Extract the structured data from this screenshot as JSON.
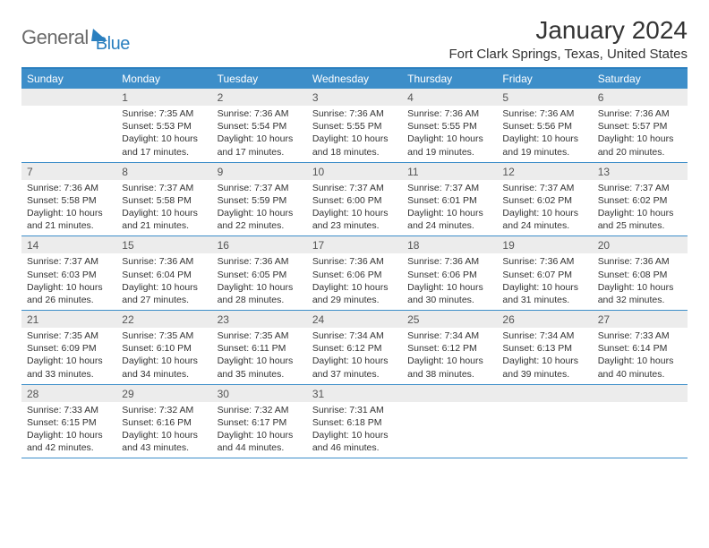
{
  "brand": {
    "part1": "General",
    "part2": "Blue"
  },
  "title": "January 2024",
  "location": "Fort Clark Springs, Texas, United States",
  "colors": {
    "header_bg": "#3d8ec9",
    "accent": "#2a7fbf",
    "row_border": "#3d8ec9",
    "daynum_bg": "#ececec",
    "text": "#333333",
    "logo_gray": "#6a6a6a",
    "page_bg": "#ffffff"
  },
  "typography": {
    "month_title_size": 28,
    "location_size": 15,
    "dayhead_size": 12,
    "daynum_size": 12,
    "body_size": 10.5
  },
  "day_names": [
    "Sunday",
    "Monday",
    "Tuesday",
    "Wednesday",
    "Thursday",
    "Friday",
    "Saturday"
  ],
  "weeks": [
    [
      {
        "empty": true
      },
      {
        "n": "1",
        "sr": "Sunrise: 7:35 AM",
        "ss": "Sunset: 5:53 PM",
        "dl1": "Daylight: 10 hours",
        "dl2": "and 17 minutes."
      },
      {
        "n": "2",
        "sr": "Sunrise: 7:36 AM",
        "ss": "Sunset: 5:54 PM",
        "dl1": "Daylight: 10 hours",
        "dl2": "and 17 minutes."
      },
      {
        "n": "3",
        "sr": "Sunrise: 7:36 AM",
        "ss": "Sunset: 5:55 PM",
        "dl1": "Daylight: 10 hours",
        "dl2": "and 18 minutes."
      },
      {
        "n": "4",
        "sr": "Sunrise: 7:36 AM",
        "ss": "Sunset: 5:55 PM",
        "dl1": "Daylight: 10 hours",
        "dl2": "and 19 minutes."
      },
      {
        "n": "5",
        "sr": "Sunrise: 7:36 AM",
        "ss": "Sunset: 5:56 PM",
        "dl1": "Daylight: 10 hours",
        "dl2": "and 19 minutes."
      },
      {
        "n": "6",
        "sr": "Sunrise: 7:36 AM",
        "ss": "Sunset: 5:57 PM",
        "dl1": "Daylight: 10 hours",
        "dl2": "and 20 minutes."
      }
    ],
    [
      {
        "n": "7",
        "sr": "Sunrise: 7:36 AM",
        "ss": "Sunset: 5:58 PM",
        "dl1": "Daylight: 10 hours",
        "dl2": "and 21 minutes."
      },
      {
        "n": "8",
        "sr": "Sunrise: 7:37 AM",
        "ss": "Sunset: 5:58 PM",
        "dl1": "Daylight: 10 hours",
        "dl2": "and 21 minutes."
      },
      {
        "n": "9",
        "sr": "Sunrise: 7:37 AM",
        "ss": "Sunset: 5:59 PM",
        "dl1": "Daylight: 10 hours",
        "dl2": "and 22 minutes."
      },
      {
        "n": "10",
        "sr": "Sunrise: 7:37 AM",
        "ss": "Sunset: 6:00 PM",
        "dl1": "Daylight: 10 hours",
        "dl2": "and 23 minutes."
      },
      {
        "n": "11",
        "sr": "Sunrise: 7:37 AM",
        "ss": "Sunset: 6:01 PM",
        "dl1": "Daylight: 10 hours",
        "dl2": "and 24 minutes."
      },
      {
        "n": "12",
        "sr": "Sunrise: 7:37 AM",
        "ss": "Sunset: 6:02 PM",
        "dl1": "Daylight: 10 hours",
        "dl2": "and 24 minutes."
      },
      {
        "n": "13",
        "sr": "Sunrise: 7:37 AM",
        "ss": "Sunset: 6:02 PM",
        "dl1": "Daylight: 10 hours",
        "dl2": "and 25 minutes."
      }
    ],
    [
      {
        "n": "14",
        "sr": "Sunrise: 7:37 AM",
        "ss": "Sunset: 6:03 PM",
        "dl1": "Daylight: 10 hours",
        "dl2": "and 26 minutes."
      },
      {
        "n": "15",
        "sr": "Sunrise: 7:36 AM",
        "ss": "Sunset: 6:04 PM",
        "dl1": "Daylight: 10 hours",
        "dl2": "and 27 minutes."
      },
      {
        "n": "16",
        "sr": "Sunrise: 7:36 AM",
        "ss": "Sunset: 6:05 PM",
        "dl1": "Daylight: 10 hours",
        "dl2": "and 28 minutes."
      },
      {
        "n": "17",
        "sr": "Sunrise: 7:36 AM",
        "ss": "Sunset: 6:06 PM",
        "dl1": "Daylight: 10 hours",
        "dl2": "and 29 minutes."
      },
      {
        "n": "18",
        "sr": "Sunrise: 7:36 AM",
        "ss": "Sunset: 6:06 PM",
        "dl1": "Daylight: 10 hours",
        "dl2": "and 30 minutes."
      },
      {
        "n": "19",
        "sr": "Sunrise: 7:36 AM",
        "ss": "Sunset: 6:07 PM",
        "dl1": "Daylight: 10 hours",
        "dl2": "and 31 minutes."
      },
      {
        "n": "20",
        "sr": "Sunrise: 7:36 AM",
        "ss": "Sunset: 6:08 PM",
        "dl1": "Daylight: 10 hours",
        "dl2": "and 32 minutes."
      }
    ],
    [
      {
        "n": "21",
        "sr": "Sunrise: 7:35 AM",
        "ss": "Sunset: 6:09 PM",
        "dl1": "Daylight: 10 hours",
        "dl2": "and 33 minutes."
      },
      {
        "n": "22",
        "sr": "Sunrise: 7:35 AM",
        "ss": "Sunset: 6:10 PM",
        "dl1": "Daylight: 10 hours",
        "dl2": "and 34 minutes."
      },
      {
        "n": "23",
        "sr": "Sunrise: 7:35 AM",
        "ss": "Sunset: 6:11 PM",
        "dl1": "Daylight: 10 hours",
        "dl2": "and 35 minutes."
      },
      {
        "n": "24",
        "sr": "Sunrise: 7:34 AM",
        "ss": "Sunset: 6:12 PM",
        "dl1": "Daylight: 10 hours",
        "dl2": "and 37 minutes."
      },
      {
        "n": "25",
        "sr": "Sunrise: 7:34 AM",
        "ss": "Sunset: 6:12 PM",
        "dl1": "Daylight: 10 hours",
        "dl2": "and 38 minutes."
      },
      {
        "n": "26",
        "sr": "Sunrise: 7:34 AM",
        "ss": "Sunset: 6:13 PM",
        "dl1": "Daylight: 10 hours",
        "dl2": "and 39 minutes."
      },
      {
        "n": "27",
        "sr": "Sunrise: 7:33 AM",
        "ss": "Sunset: 6:14 PM",
        "dl1": "Daylight: 10 hours",
        "dl2": "and 40 minutes."
      }
    ],
    [
      {
        "n": "28",
        "sr": "Sunrise: 7:33 AM",
        "ss": "Sunset: 6:15 PM",
        "dl1": "Daylight: 10 hours",
        "dl2": "and 42 minutes."
      },
      {
        "n": "29",
        "sr": "Sunrise: 7:32 AM",
        "ss": "Sunset: 6:16 PM",
        "dl1": "Daylight: 10 hours",
        "dl2": "and 43 minutes."
      },
      {
        "n": "30",
        "sr": "Sunrise: 7:32 AM",
        "ss": "Sunset: 6:17 PM",
        "dl1": "Daylight: 10 hours",
        "dl2": "and 44 minutes."
      },
      {
        "n": "31",
        "sr": "Sunrise: 7:31 AM",
        "ss": "Sunset: 6:18 PM",
        "dl1": "Daylight: 10 hours",
        "dl2": "and 46 minutes."
      },
      {
        "empty": true
      },
      {
        "empty": true
      },
      {
        "empty": true
      }
    ]
  ]
}
